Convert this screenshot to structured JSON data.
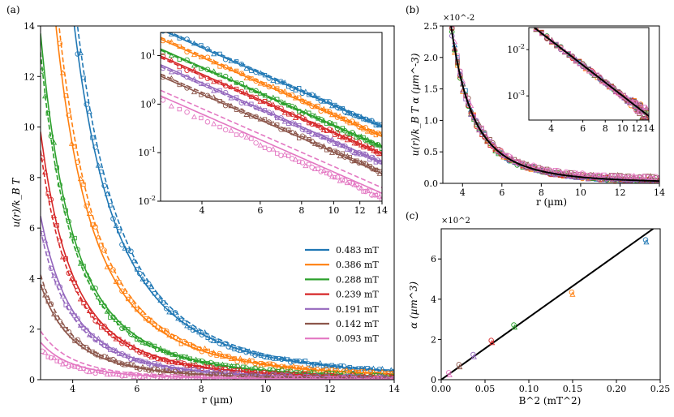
{
  "chart_data": [
    {
      "panel": "(a)",
      "type": "line",
      "xlabel": "r (µm)",
      "ylabel": "u(r)/k_B T",
      "xlim": [
        3,
        14
      ],
      "ylim": [
        0,
        14
      ],
      "xticks": [
        4,
        6,
        8,
        10,
        12,
        14
      ],
      "yticks": [
        0,
        2,
        4,
        6,
        8,
        10,
        12,
        14
      ],
      "model": "u = A * r^-3 (solid: fit, dashed: dipolar theory); markers: measured data (circle, triangle, square)",
      "series": [
        {
          "name": "0.483 mT",
          "color": "#1f77b4",
          "A_fit": 930,
          "A_dash": 1000,
          "A_data": 950
        },
        {
          "name": "0.386 mT",
          "color": "#ff7f0e",
          "A_fit": 590,
          "A_dash": 640,
          "A_data": 610
        },
        {
          "name": "0.288 mT",
          "color": "#2ca02c",
          "A_fit": 370,
          "A_dash": 350,
          "A_data": 360
        },
        {
          "name": "0.239 mT",
          "color": "#d62728",
          "A_fit": 265,
          "A_dash": 245,
          "A_data": 255
        },
        {
          "name": "0.191 mT",
          "color": "#9467bd",
          "A_fit": 175,
          "A_dash": 160,
          "A_data": 168
        },
        {
          "name": "0.142 mT",
          "color": "#8c564b",
          "A_fit": 102,
          "A_dash": 112,
          "A_data": 106
        },
        {
          "name": "0.093 mT",
          "color": "#e377c2",
          "A_fit": 40,
          "A_dash": 52,
          "A_data": 32
        }
      ],
      "inset": {
        "scale": "log-log",
        "xlim": [
          3,
          14
        ],
        "ylim": [
          0.01,
          30
        ],
        "xticks": [
          4,
          6,
          8,
          10,
          12,
          14
        ],
        "yticks": [
          0.01,
          0.1,
          1,
          10
        ],
        "ytick_labels": [
          "10^-2",
          "10^-1",
          "10^0",
          "10^1"
        ]
      }
    },
    {
      "panel": "(b)",
      "type": "line",
      "xlabel": "r (µm)",
      "ylabel": "u(r)/k_B T α (µm^-3)",
      "scale_label": "×10^-2",
      "xlim": [
        3,
        14
      ],
      "ylim": [
        0,
        2.5
      ],
      "xticks": [
        4,
        6,
        8,
        10,
        12,
        14
      ],
      "yticks": [
        0.0,
        0.5,
        1.0,
        1.5,
        2.0,
        2.5
      ],
      "ytick_labels": [
        "0.0",
        "0.5",
        "1.0",
        "1.5",
        "2.0",
        "2.5"
      ],
      "master_curve": "y = 100 / r^3 (black line, in units of 10^-2 µm^-3)",
      "inset": {
        "scale": "log-log",
        "xlim": [
          3,
          14
        ],
        "ylim": [
          0.0003,
          0.03
        ],
        "xticks": [
          4,
          6,
          8,
          10,
          12,
          14
        ],
        "yticks": [
          0.001,
          0.01
        ],
        "ytick_labels": [
          "10^-3",
          "10^-2"
        ]
      }
    },
    {
      "panel": "(c)",
      "type": "scatter",
      "xlabel": "B^2 (mT^2)",
      "ylabel": "α (µm^3)",
      "scale_label": "×10^2",
      "xlim": [
        0,
        0.25
      ],
      "ylim": [
        0,
        7.5
      ],
      "xticks": [
        0.0,
        0.05,
        0.1,
        0.15,
        0.2,
        0.25
      ],
      "xtick_labels": [
        "0.00",
        "0.05",
        "0.10",
        "0.15",
        "0.20",
        "0.25"
      ],
      "yticks": [
        0,
        2,
        4,
        6
      ],
      "ytick_labels": [
        "0",
        "2",
        "4",
        "6"
      ],
      "fit_line": {
        "slope": 31,
        "intercept": 0
      },
      "points": [
        {
          "x": 0.0086,
          "y": 0.35,
          "color": "#e377c2"
        },
        {
          "x": 0.0202,
          "y": 0.75,
          "color": "#8c564b"
        },
        {
          "x": 0.0365,
          "y": 1.25,
          "color": "#9467bd"
        },
        {
          "x": 0.0571,
          "y": 1.95,
          "color": "#d62728"
        },
        {
          "x": 0.0829,
          "y": 2.72,
          "color": "#2ca02c"
        },
        {
          "x": 0.149,
          "y": 4.35,
          "color": "#ff7f0e"
        },
        {
          "x": 0.2333,
          "y": 6.95,
          "color": "#1f77b4"
        }
      ]
    }
  ]
}
